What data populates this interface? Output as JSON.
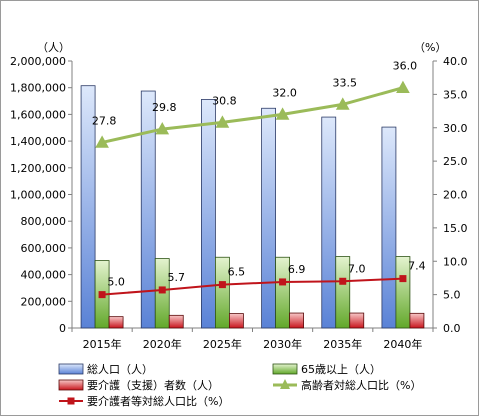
{
  "chart_data": {
    "type": "bar",
    "left_unit": "（人）",
    "right_unit": "（%）",
    "categories": [
      "2015年",
      "2020年",
      "2025年",
      "2030年",
      "2035年",
      "2040年"
    ],
    "ylim_left": [
      0,
      2000000
    ],
    "ylim_right": [
      0,
      40.0
    ],
    "left_ticks": [
      "0",
      "200,000",
      "400,000",
      "600,000",
      "800,000",
      "1,000,000",
      "1,200,000",
      "1,400,000",
      "1,600,000",
      "1,800,000",
      "2,000,000"
    ],
    "right_ticks": [
      "0.0",
      "5.0",
      "10.0",
      "15.0",
      "20.0",
      "25.0",
      "30.0",
      "35.0",
      "40.0"
    ],
    "grid": false,
    "legend_position": "bottom",
    "bar_series": [
      {
        "name": "総人口（人）",
        "axis": "left",
        "values": [
          1815000,
          1775000,
          1712000,
          1646000,
          1580000,
          1505000
        ],
        "color_top": "#dde8fb",
        "color_bottom": "#5a82d6",
        "stroke": "#2b3a66"
      },
      {
        "name": "65歳以上（人）",
        "axis": "left",
        "values": [
          505000,
          520000,
          530000,
          530000,
          535000,
          535000
        ],
        "color_top": "#e4f3cf",
        "color_bottom": "#62a82a",
        "stroke": "#2e5414"
      },
      {
        "name": "要介護（支援）者数（人）",
        "axis": "left",
        "values": [
          85000,
          95000,
          108000,
          112000,
          112000,
          110000
        ],
        "color_top": "#f7c8c8",
        "color_bottom": "#c8151d",
        "stroke": "#5a0a0a"
      }
    ],
    "line_series": [
      {
        "name": "高齢者対総人口比（%）",
        "axis": "right",
        "values": [
          27.8,
          29.8,
          30.8,
          32.0,
          33.5,
          36.0
        ],
        "labels": [
          "27.8",
          "29.8",
          "30.8",
          "32.0",
          "33.5",
          "36.0"
        ],
        "color": "#9bbb59",
        "marker": "triangle"
      },
      {
        "name": "要介護者等対総人口比（%）",
        "axis": "right",
        "values": [
          5.0,
          5.7,
          6.5,
          6.9,
          7.0,
          7.4
        ],
        "labels": [
          "5.0",
          "5.7",
          "6.5",
          "6.9",
          "7.0",
          "7.4"
        ],
        "color": "#c0141b",
        "marker": "square"
      }
    ]
  }
}
